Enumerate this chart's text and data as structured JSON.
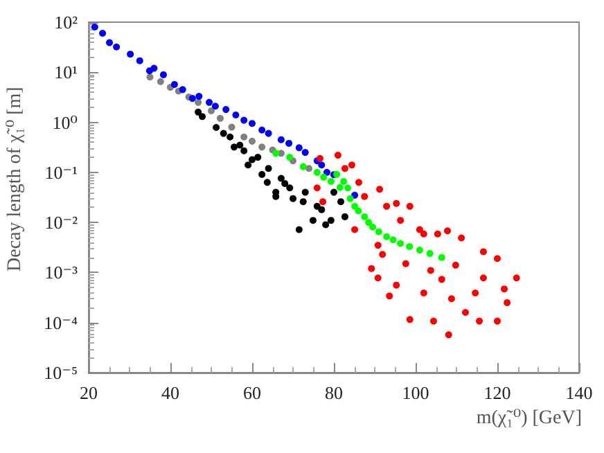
{
  "chart_data": {
    "type": "scatter",
    "xlabel": "m(χ̃₁⁰) [GeV]",
    "ylabel": "Decay length of χ̃₁⁰ [m]",
    "xlim": [
      20,
      140
    ],
    "xticks": [
      20,
      40,
      60,
      80,
      100,
      120,
      140
    ],
    "ylim": [
      1e-05,
      100
    ],
    "yticks": [
      {
        "value": 1e-05,
        "label": "10⁻⁵"
      },
      {
        "value": 0.0001,
        "label": "10⁻⁴"
      },
      {
        "value": 0.001,
        "label": "10⁻³"
      },
      {
        "value": 0.01,
        "label": "10⁻²"
      },
      {
        "value": 0.1,
        "label": "10⁻¹"
      },
      {
        "value": 1,
        "label": "10⁰"
      },
      {
        "value": 10,
        "label": "10¹"
      },
      {
        "value": 100,
        "label": "10²"
      }
    ],
    "log": "y",
    "grid": false,
    "marker": "circle",
    "series": [
      {
        "color": "#808080",
        "x": [
          37.6,
          42.0,
          46.8,
          52.2,
          58.0,
          62.4,
          67.1,
          73.9,
          35,
          40,
          44.5,
          50,
          55,
          60,
          65,
          70
        ],
        "values": [
          6.5,
          4.2,
          2.5,
          1.2,
          0.51,
          0.32,
          0.24,
          0.12,
          8,
          5,
          3.2,
          1.7,
          0.8,
          0.42,
          0.28,
          0.17
        ]
      },
      {
        "color": "#0000ff",
        "x": [
          21.5,
          23.4,
          25.1,
          26.8,
          30.2,
          32.5,
          34.9,
          38.3,
          41.0,
          45.4,
          49.5,
          53.6,
          58.0,
          62.4,
          67.1,
          71.5,
          75.9,
          78.3,
          85.1,
          36,
          43,
          47,
          51,
          56,
          60,
          64,
          69,
          73,
          77,
          80
        ],
        "values": [
          80,
          60,
          39,
          32,
          23,
          17,
          10.7,
          8.9,
          5.7,
          3.0,
          2.5,
          1.8,
          1.1,
          0.7,
          0.45,
          0.31,
          0.17,
          0.1,
          0.035,
          12,
          4.5,
          3.3,
          2.1,
          1.4,
          0.95,
          0.6,
          0.38,
          0.25,
          0.14,
          0.09
        ]
      },
      {
        "color": "#000000",
        "x": [
          46.8,
          47.8,
          51.2,
          54.6,
          58.0,
          61.4,
          62.4,
          65.8,
          69.2,
          72.5,
          71.5,
          74.9,
          67.1,
          63.7,
          59.0,
          55.6,
          65.8,
          79.3,
          81.7,
          75.9,
          82.7,
          53,
          57,
          60,
          64,
          68,
          70,
          73,
          77,
          80,
          78
        ],
        "values": [
          1.6,
          1.3,
          0.79,
          0.51,
          0.27,
          0.2,
          0.091,
          0.033,
          0.049,
          0.026,
          0.0072,
          0.011,
          0.076,
          0.063,
          0.14,
          0.32,
          0.04,
          0.011,
          0.026,
          0.021,
          0.013,
          0.6,
          0.35,
          0.18,
          0.12,
          0.06,
          0.03,
          0.04,
          0.018,
          0.04,
          0.009
        ]
      },
      {
        "color": "#ff0000",
        "x": [
          81.0,
          84.4,
          82.7,
          86.1,
          87.5,
          91.2,
          92.9,
          95.3,
          98.6,
          96.3,
          101.0,
          105.4,
          107.8,
          111.2,
          116.6,
          120,
          124.7,
          90.8,
          93.6,
          98.6,
          104.4,
          108.1,
          108.8,
          106.4,
          112.2,
          115.6,
          120,
          122.4,
          121.7,
          114.6,
          102,
          95.3,
          91.9,
          89.2,
          97.6,
          103.7,
          109.8,
          116.6,
          85.1,
          90.8,
          102,
          75.9,
          77.3,
          76.6
        ],
        "values": [
          0.22,
          0.14,
          0.12,
          0.063,
          0.033,
          0.046,
          0.021,
          0.024,
          0.021,
          0.011,
          0.0072,
          0.0059,
          0.0068,
          0.0049,
          0.0026,
          0.0019,
          0.00078,
          0.00078,
          0.00034,
          0.000115,
          0.000107,
          5.7e-05,
          0.0003,
          0.00073,
          0.00016,
          0.000107,
          0.000107,
          0.00025,
          0.00047,
          0.00039,
          0.00039,
          0.00056,
          0.0023,
          0.0012,
          0.0015,
          0.0011,
          0.0014,
          0.00078,
          0.0072,
          0.0035,
          0.0059,
          0.049,
          0.026,
          0.19
        ]
      },
      {
        "color": "#00ff00",
        "x": [
          65.8,
          69.2,
          72.5,
          75.9,
          79.3,
          80.7,
          82.4,
          83.4,
          85.1,
          87.5,
          89.5,
          92.9,
          96.3,
          101.0,
          106.4,
          84,
          86,
          88.5,
          91,
          94.5,
          98.5,
          103.5,
          77.5,
          81.5
        ],
        "values": [
          0.24,
          0.2,
          0.13,
          0.1,
          0.066,
          0.091,
          0.066,
          0.049,
          0.021,
          0.013,
          0.0081,
          0.0052,
          0.0038,
          0.0028,
          0.002,
          0.03,
          0.017,
          0.01,
          0.0065,
          0.0045,
          0.0033,
          0.0024,
          0.08,
          0.05
        ]
      }
    ]
  }
}
